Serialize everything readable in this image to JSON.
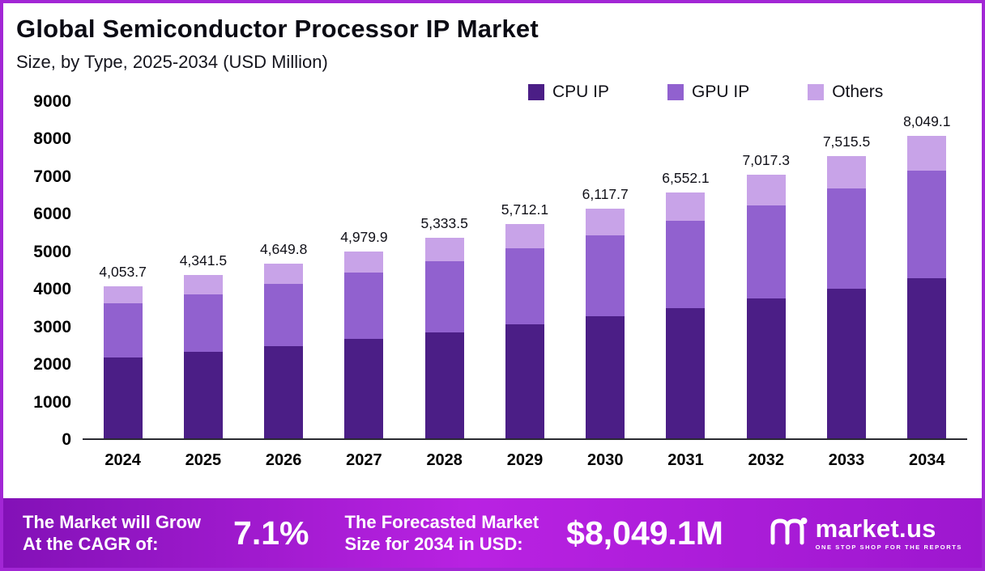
{
  "header": {
    "title": "Global Semiconductor Processor IP Market",
    "subtitle": "Size, by Type, 2025-2034 (USD Million)"
  },
  "legend": [
    {
      "label": "CPU IP",
      "color": "#4b1e86"
    },
    {
      "label": "GPU IP",
      "color": "#9161cf"
    },
    {
      "label": "Others",
      "color": "#c8a3e8"
    }
  ],
  "chart_data": {
    "type": "bar",
    "stacked": true,
    "title": "Global Semiconductor Processor IP Market Size, by Type, 2025-2034 (USD Million)",
    "xlabel": "",
    "ylabel": "",
    "ylim": [
      0,
      9000
    ],
    "yticks": [
      9000,
      8000,
      7000,
      6000,
      5000,
      4000,
      3000,
      2000,
      1000,
      0
    ],
    "grid": false,
    "legend_position": "top-right",
    "categories": [
      "2024",
      "2025",
      "2026",
      "2027",
      "2028",
      "2029",
      "2030",
      "2031",
      "2032",
      "2033",
      "2034"
    ],
    "series": [
      {
        "name": "CPU IP",
        "color": "#4b1e86",
        "values": [
          2148.5,
          2301.0,
          2464.4,
          2639.3,
          2826.8,
          3027.4,
          3242.4,
          3472.6,
          3719.2,
          3983.2,
          4266.0
        ]
      },
      {
        "name": "GPU IP",
        "color": "#9161cf",
        "values": [
          1439.1,
          1541.2,
          1650.7,
          1767.9,
          1893.4,
          2027.8,
          2171.8,
          2326.0,
          2491.1,
          2668.0,
          2857.4
        ]
      },
      {
        "name": "Others",
        "color": "#c8a3e8",
        "values": [
          466.1,
          499.3,
          534.7,
          572.7,
          613.3,
          656.9,
          703.5,
          753.5,
          807.0,
          864.3,
          925.7
        ]
      }
    ],
    "totals": [
      4053.7,
      4341.5,
      4649.8,
      4979.9,
      5333.5,
      5712.1,
      6117.7,
      6552.1,
      7017.3,
      7515.5,
      8049.1
    ],
    "total_labels": [
      "4,053.7",
      "4,341.5",
      "4,649.8",
      "4,979.9",
      "5,333.5",
      "5,712.1",
      "6,117.7",
      "6,552.1",
      "7,017.3",
      "7,515.5",
      "8,049.1"
    ]
  },
  "footer": {
    "cagr_label_line1": "The Market will Grow",
    "cagr_label_line2": "At the CAGR of:",
    "cagr_value": "7.1%",
    "forecast_label_line1": "The Forecasted Market",
    "forecast_label_line2": "Size for 2034 in USD:",
    "forecast_value": "$8,049.1M",
    "brand": "market.us",
    "brand_tagline": "ONE STOP SHOP FOR THE REPORTS"
  },
  "colors": {
    "frame_border": "#a226d5",
    "footer_gradient_start": "#8311b7",
    "footer_gradient_mid": "#b922e2",
    "footer_gradient_end": "#9d17cf",
    "axis_text": "#000000",
    "title_text": "#0b0b14"
  }
}
